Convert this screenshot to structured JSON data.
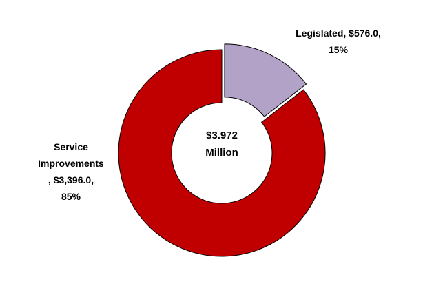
{
  "chart_data": {
    "type": "donut",
    "categories": [
      "Legislated",
      "Service Improvements"
    ],
    "values": [
      576.0,
      3396.0
    ],
    "value_labels": [
      "$576.0",
      "$3,396.0"
    ],
    "percent_labels": [
      "15%",
      "85%"
    ],
    "colors": [
      "#b3a2c7",
      "#c00000"
    ],
    "exploded": [
      true,
      false
    ],
    "center_text": [
      "$3.972",
      "Million"
    ]
  }
}
